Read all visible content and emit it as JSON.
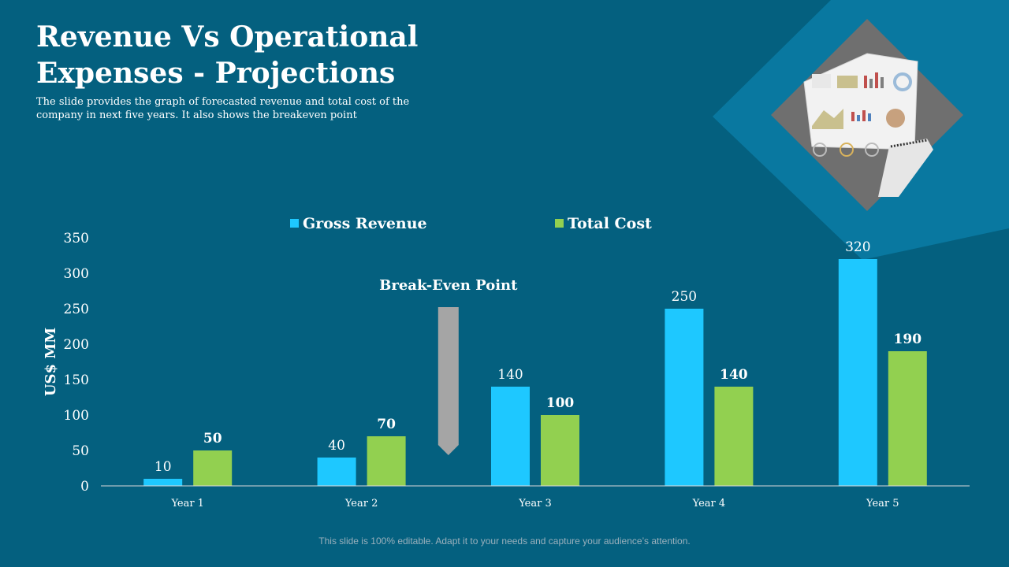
{
  "slide": {
    "title": "Revenue Vs Operational Expenses - Projections",
    "subtitle": "The slide provides the graph of forecasted revenue and total cost of the company in next five years. It also shows the breakeven point",
    "footer": "This slide is 100% editable. Adapt it to your needs and capture your audience’s attention."
  },
  "chart_data": {
    "type": "bar",
    "categories": [
      "Year 1",
      "Year 2",
      "Year 3",
      "Year 4",
      "Year 5"
    ],
    "series": [
      {
        "name": "Gross Revenue",
        "values": [
          10,
          40,
          140,
          250,
          320
        ],
        "color": "#1ec8ff"
      },
      {
        "name": "Total Cost",
        "values": [
          50,
          70,
          100,
          140,
          190
        ],
        "color": "#92d050"
      }
    ],
    "ylabel": "US$ MM",
    "ylim": [
      0,
      350
    ],
    "yticks": [
      0,
      50,
      100,
      150,
      200,
      250,
      300,
      350
    ],
    "legend_position": "top",
    "grid": false,
    "annotation": {
      "text": "Break-Even Point",
      "marker": "down-arrow",
      "between": [
        "Year 2",
        "Year 3"
      ]
    }
  },
  "image": {
    "description_icon": "dashboard-report-photo-icon"
  }
}
